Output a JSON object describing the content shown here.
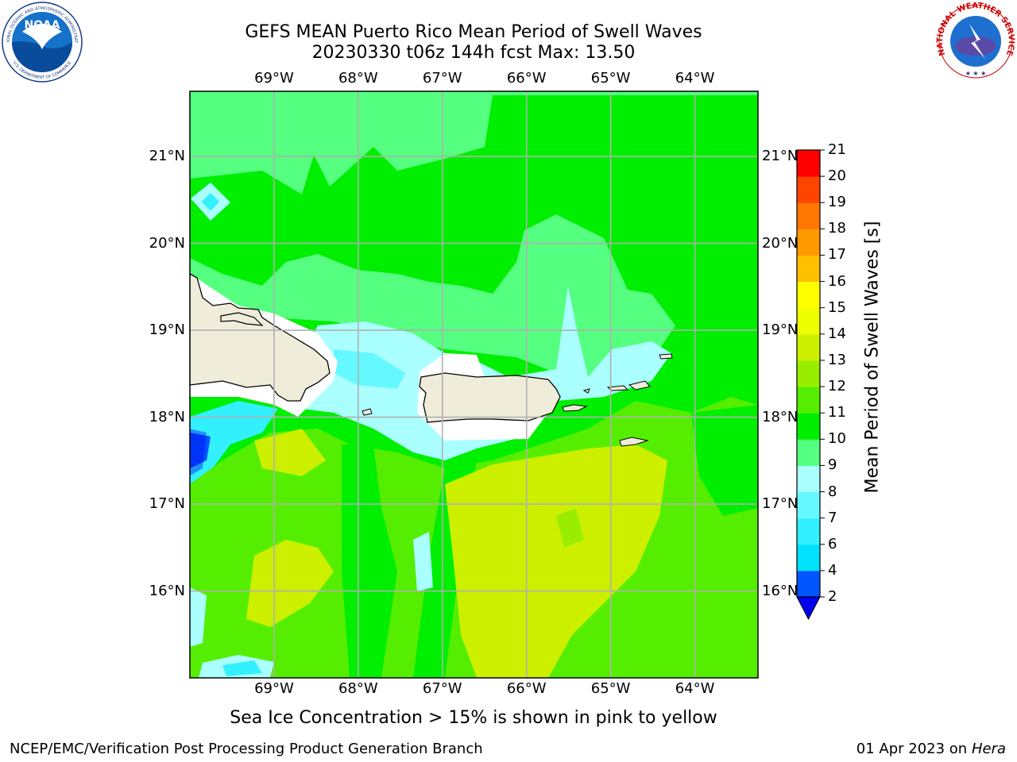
{
  "header": {
    "title_line1": "GEFS MEAN Puerto Rico Mean Period of Swell Waves",
    "title_line2": "20230330 t06z 144h fcst   Max: 13.50"
  },
  "map": {
    "lon_labels": [
      "69°W",
      "68°W",
      "67°W",
      "66°W",
      "65°W",
      "64°W"
    ],
    "lat_labels": [
      "21°N",
      "20°N",
      "19°N",
      "18°N",
      "17°N",
      "16°N"
    ],
    "extent": {
      "lon_min": -70.0,
      "lon_max": -63.25,
      "lat_min": 15.0,
      "lat_max": 21.75
    }
  },
  "colorbar": {
    "label": "Mean Period of Swell Waves [s]",
    "levels": [
      2,
      4,
      6,
      7,
      8,
      9,
      10,
      11,
      12,
      13,
      14,
      15,
      16,
      17,
      18,
      19,
      20,
      21
    ],
    "tick_labels": [
      "2",
      "4",
      "6",
      "7",
      "8",
      "9",
      "10",
      "11",
      "12",
      "13",
      "14",
      "15",
      "16",
      "17",
      "18",
      "19",
      "20",
      "21"
    ],
    "colors": [
      "#0055ff",
      "#00e1ff",
      "#33f0ff",
      "#66f8ff",
      "#aaffff",
      "#55ff80",
      "#00ee00",
      "#55ee00",
      "#99ee00",
      "#ccf000",
      "#eeff00",
      "#ffff00",
      "#ffc000",
      "#ff9900",
      "#ff7700",
      "#ff4400",
      "#ff0000"
    ],
    "extend_color": "#0000ee"
  },
  "caption": "Sea Ice Concentration > 15% is shown in pink to yellow",
  "footer": {
    "left": "NCEP/EMC/Verification Post Processing Product Generation Branch",
    "right_prefix": "01 Apr 2023 on ",
    "right_host": "Hera"
  },
  "logos": {
    "left_text": "NOAA",
    "left_ring_top": "NATIONAL OCEANIC AND ATMOSPHERIC ADMINISTRATION",
    "left_ring_bottom": "U.S. DEPARTMENT OF COMMERCE",
    "right_ring": "NATIONAL WEATHER SERVICE"
  },
  "colors": {
    "land": "#efedda",
    "grid": "#b0b0b0",
    "green_base": "#00ee00",
    "green_light": "#55ff80",
    "yellow_green": "#ccf000",
    "lime": "#99ee00"
  }
}
